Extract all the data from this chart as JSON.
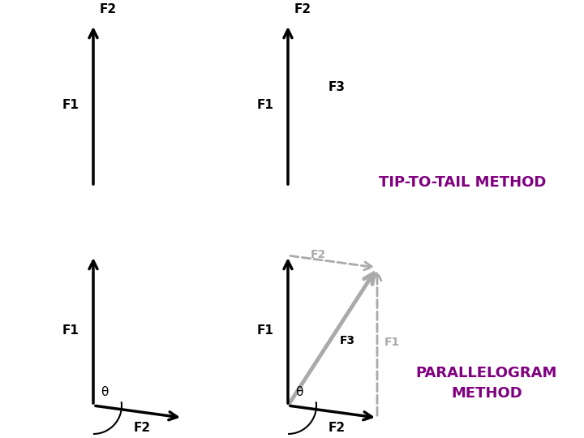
{
  "title_tip": "TIP-TO-TAIL METHOD",
  "title_para_1": "PARALLELOGRAM",
  "title_para_2": "METHOD",
  "title_color": "#800080",
  "title_fontsize": 13,
  "label_fontsize": 11,
  "bg_color": "#ffffff",
  "black": "#000000",
  "gray": "#aaaaaa",
  "dashed_gray": "#aaaaaa",
  "arrow_lw": 2.5,
  "arrow_lw_result": 3.5,
  "arrow_lw_dashed": 2.0,
  "mutation_scale": 18,
  "mutation_scale_result": 22
}
